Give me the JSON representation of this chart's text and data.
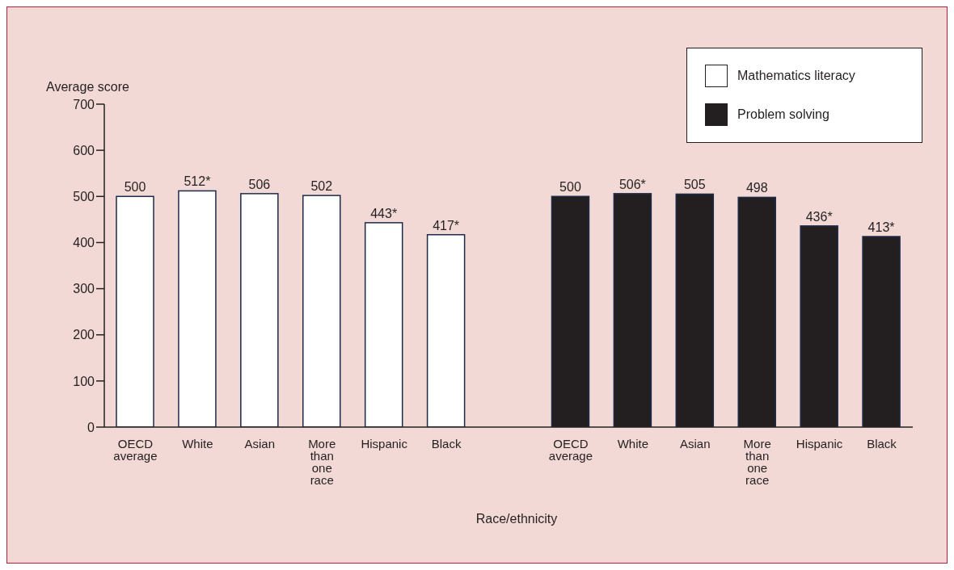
{
  "chart_data": {
    "type": "bar",
    "categories": [
      "OECD average",
      "White",
      "Asian",
      "More than one race",
      "Hispanic",
      "Black",
      null,
      "OECD average",
      "White",
      "Asian",
      "More than one race",
      "Hispanic",
      "Black"
    ],
    "series": [
      {
        "name": "Mathematics literacy",
        "color": "#ffffff",
        "values": [
          500,
          512,
          506,
          502,
          443,
          417,
          null,
          null,
          null,
          null,
          null,
          null,
          null
        ],
        "value_labels": [
          "500",
          "512*",
          "506",
          "502",
          "443*",
          "417*",
          null,
          null,
          null,
          null,
          null,
          null,
          null
        ]
      },
      {
        "name": "Problem solving",
        "color": "#231f20",
        "values": [
          null,
          null,
          null,
          null,
          null,
          null,
          null,
          500,
          506,
          505,
          498,
          436,
          413
        ],
        "value_labels": [
          null,
          null,
          null,
          null,
          null,
          null,
          null,
          "500",
          "506*",
          "505",
          "498",
          "436*",
          "413*"
        ]
      }
    ],
    "ylabel": "Average score",
    "xlabel": "Race/ethnicity",
    "ylim": [
      0,
      700
    ],
    "yticks": [
      0,
      100,
      200,
      300,
      400,
      500,
      600,
      700
    ],
    "legend": "top right"
  }
}
